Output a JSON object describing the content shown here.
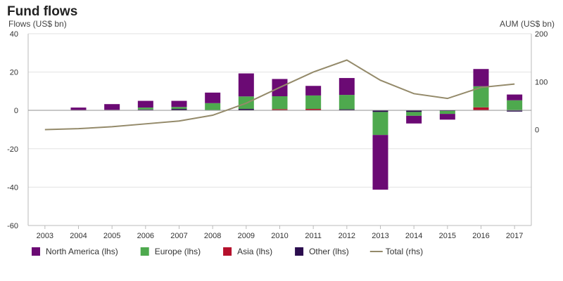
{
  "chart_data": {
    "type": "bar",
    "title": "Fund flows",
    "ylabel_left": "Flows (US$ bn)",
    "ylabel_right": "AUM (US$ bn)",
    "categories": [
      "2003",
      "2004",
      "2005",
      "2006",
      "2007",
      "2008",
      "2009",
      "2010",
      "2011",
      "2012",
      "2013",
      "2014",
      "2015",
      "2016",
      "2017"
    ],
    "ylim_left": [
      -60,
      40
    ],
    "yticks_left": [
      -60,
      -40,
      -20,
      0,
      20,
      40
    ],
    "ylim_right": [
      -200,
      200
    ],
    "yticks_right": [
      0,
      100,
      200
    ],
    "grid": true,
    "legend_position": "bottom",
    "series": [
      {
        "name": "North America (lhs)",
        "type": "bar",
        "axis": "left",
        "color": "#6b0a74",
        "values": [
          0.2,
          1.3,
          3.0,
          3.5,
          3.2,
          5.5,
          12.0,
          9.0,
          5.0,
          8.8,
          -28.5,
          -4.0,
          -3.0,
          9.0,
          3.0
        ]
      },
      {
        "name": "Europe (lhs)",
        "type": "bar",
        "axis": "left",
        "color": "#4ea94e",
        "values": [
          0.0,
          0.2,
          0.3,
          1.0,
          1.0,
          3.8,
          6.5,
          6.7,
          7.0,
          7.5,
          -12.0,
          -2.0,
          -1.5,
          11.0,
          5.3
        ]
      },
      {
        "name": "Asia (lhs)",
        "type": "bar",
        "axis": "left",
        "color": "#b5102c",
        "values": [
          0.0,
          0.0,
          0.0,
          0.0,
          0.0,
          0.0,
          0.0,
          0.7,
          0.8,
          0.0,
          0.0,
          0.0,
          0.0,
          1.6,
          0.0
        ]
      },
      {
        "name": "Other (lhs)",
        "type": "bar",
        "axis": "left",
        "color": "#2b0d4e",
        "values": [
          0.0,
          0.0,
          0.0,
          0.5,
          0.8,
          0.0,
          0.8,
          0.0,
          0.0,
          0.6,
          -0.8,
          -0.8,
          -0.3,
          0.0,
          -0.6
        ]
      },
      {
        "name": "Total (rhs)",
        "type": "line",
        "axis": "right",
        "color": "#948a6a",
        "values": [
          0,
          2,
          6,
          12,
          18,
          30,
          55,
          88,
          120,
          145,
          103,
          75,
          65,
          88,
          95
        ]
      }
    ]
  }
}
